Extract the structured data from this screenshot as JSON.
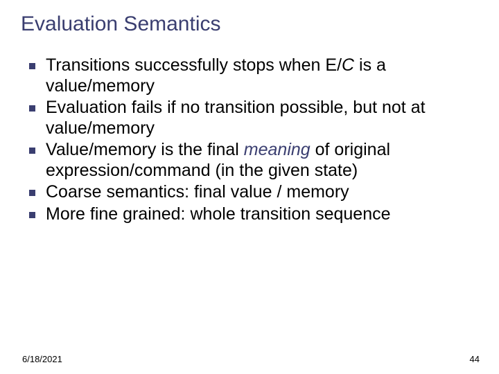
{
  "colors": {
    "title": "#3a3e70",
    "body": "#000000",
    "bullet": "#3a3e70",
    "meaning": "#3a3e70",
    "background": "#ffffff"
  },
  "fonts": {
    "title_size": 30,
    "body_size": 25,
    "footer_size": 13
  },
  "title": "Evaluation Semantics",
  "bullets": [
    {
      "pre": "Transitions successfully stops when E/",
      "ital": "C",
      "post": " is a value/memory"
    },
    {
      "pre": "Evaluation fails if no transition possible, but not at value/memory",
      "ital": "",
      "post": ""
    },
    {
      "pre": "Value/memory is the final ",
      "em": "meaning",
      "post": " of original expression/command (in the given state)"
    },
    {
      "pre": "Coarse semantics: final value / memory",
      "ital": "",
      "post": ""
    },
    {
      "pre": "More fine grained: whole transition sequence",
      "ital": "",
      "post": ""
    }
  ],
  "footer": {
    "date": "6/18/2021",
    "page": "44"
  }
}
